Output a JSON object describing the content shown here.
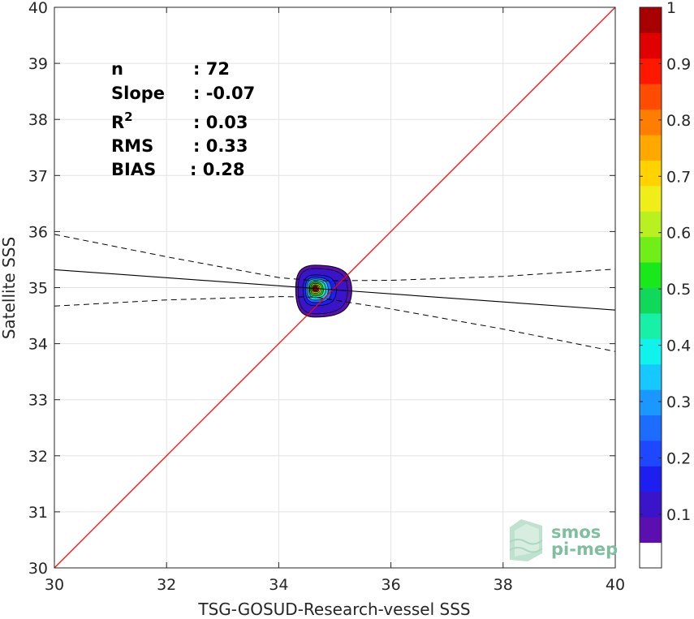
{
  "chart_data": {
    "type": "scatter",
    "title": "",
    "xlabel": "TSG-GOSUD-Research-vessel SSS",
    "ylabel": "Satellite SSS",
    "xlim": [
      30,
      40
    ],
    "ylim": [
      30,
      40
    ],
    "xticks": [
      "30",
      "32",
      "34",
      "36",
      "38",
      "40"
    ],
    "yticks": [
      "30",
      "31",
      "32",
      "33",
      "34",
      "35",
      "36",
      "37",
      "38",
      "39",
      "40"
    ],
    "grid": true,
    "density_center": {
      "x": 34.65,
      "y": 34.98
    },
    "identity_line": {
      "x": [
        30,
        40
      ],
      "y": [
        30,
        40
      ],
      "color": "#ff0000"
    },
    "regression_line": {
      "x": [
        30,
        40
      ],
      "y": [
        35.32,
        34.6
      ],
      "color": "#000000"
    },
    "confidence_upper": {
      "x": [
        30,
        32,
        34,
        34.65,
        36,
        38,
        40
      ],
      "y": [
        35.95,
        35.55,
        35.18,
        35.12,
        35.13,
        35.2,
        35.33
      ]
    },
    "confidence_lower": {
      "x": [
        30,
        32,
        34,
        34.65,
        36,
        38,
        40
      ],
      "y": [
        34.67,
        34.78,
        34.84,
        34.83,
        34.62,
        34.26,
        33.86
      ]
    },
    "colorbar": {
      "ticks": [
        "0.1",
        "0.2",
        "0.3",
        "0.4",
        "0.5",
        "0.6",
        "0.7",
        "0.8",
        "0.9",
        "1"
      ],
      "colors": [
        "#ffffff",
        "#5b0fb0",
        "#3a14c8",
        "#1f1ef0",
        "#1e48ff",
        "#1c6cff",
        "#1a98ff",
        "#16c8ff",
        "#10f2ec",
        "#18f0a8",
        "#10d85a",
        "#19e81a",
        "#70ee18",
        "#b8f020",
        "#f0ee18",
        "#ffd200",
        "#ffa800",
        "#ff7e00",
        "#ff4c00",
        "#ff1800",
        "#e00000",
        "#a80000"
      ]
    }
  },
  "stats": [
    {
      "label": "n",
      "value": ": 72"
    },
    {
      "label": "Slope",
      "value": ": -0.07"
    },
    {
      "label": "R",
      "sup": "2",
      "value": ": 0.03"
    },
    {
      "label": "RMS",
      "value": ": 0.33"
    },
    {
      "label": "BIAS",
      "value": ": 0.28"
    }
  ],
  "logo": {
    "line1": "smos",
    "line2": "pi-mep"
  }
}
